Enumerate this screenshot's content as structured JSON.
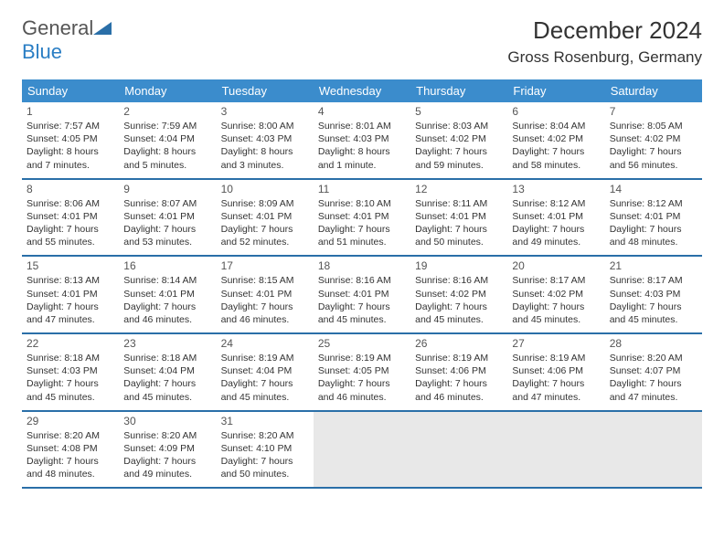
{
  "logo": {
    "text_main": "General",
    "text_blue": "Blue",
    "triangle_color": "#2a6fa8"
  },
  "title": "December 2024",
  "location": "Gross Rosenburg, Germany",
  "day_headers": [
    "Sunday",
    "Monday",
    "Tuesday",
    "Wednesday",
    "Thursday",
    "Friday",
    "Saturday"
  ],
  "colors": {
    "header_bg": "#3b8ccc",
    "header_text": "#ffffff",
    "row_border": "#2a6fa8",
    "inactive_bg": "#e8e8e8",
    "text": "#333333"
  },
  "weeks": [
    [
      {
        "num": "1",
        "sunrise": "Sunrise: 7:57 AM",
        "sunset": "Sunset: 4:05 PM",
        "daylight": "Daylight: 8 hours and 7 minutes."
      },
      {
        "num": "2",
        "sunrise": "Sunrise: 7:59 AM",
        "sunset": "Sunset: 4:04 PM",
        "daylight": "Daylight: 8 hours and 5 minutes."
      },
      {
        "num": "3",
        "sunrise": "Sunrise: 8:00 AM",
        "sunset": "Sunset: 4:03 PM",
        "daylight": "Daylight: 8 hours and 3 minutes."
      },
      {
        "num": "4",
        "sunrise": "Sunrise: 8:01 AM",
        "sunset": "Sunset: 4:03 PM",
        "daylight": "Daylight: 8 hours and 1 minute."
      },
      {
        "num": "5",
        "sunrise": "Sunrise: 8:03 AM",
        "sunset": "Sunset: 4:02 PM",
        "daylight": "Daylight: 7 hours and 59 minutes."
      },
      {
        "num": "6",
        "sunrise": "Sunrise: 8:04 AM",
        "sunset": "Sunset: 4:02 PM",
        "daylight": "Daylight: 7 hours and 58 minutes."
      },
      {
        "num": "7",
        "sunrise": "Sunrise: 8:05 AM",
        "sunset": "Sunset: 4:02 PM",
        "daylight": "Daylight: 7 hours and 56 minutes."
      }
    ],
    [
      {
        "num": "8",
        "sunrise": "Sunrise: 8:06 AM",
        "sunset": "Sunset: 4:01 PM",
        "daylight": "Daylight: 7 hours and 55 minutes."
      },
      {
        "num": "9",
        "sunrise": "Sunrise: 8:07 AM",
        "sunset": "Sunset: 4:01 PM",
        "daylight": "Daylight: 7 hours and 53 minutes."
      },
      {
        "num": "10",
        "sunrise": "Sunrise: 8:09 AM",
        "sunset": "Sunset: 4:01 PM",
        "daylight": "Daylight: 7 hours and 52 minutes."
      },
      {
        "num": "11",
        "sunrise": "Sunrise: 8:10 AM",
        "sunset": "Sunset: 4:01 PM",
        "daylight": "Daylight: 7 hours and 51 minutes."
      },
      {
        "num": "12",
        "sunrise": "Sunrise: 8:11 AM",
        "sunset": "Sunset: 4:01 PM",
        "daylight": "Daylight: 7 hours and 50 minutes."
      },
      {
        "num": "13",
        "sunrise": "Sunrise: 8:12 AM",
        "sunset": "Sunset: 4:01 PM",
        "daylight": "Daylight: 7 hours and 49 minutes."
      },
      {
        "num": "14",
        "sunrise": "Sunrise: 8:12 AM",
        "sunset": "Sunset: 4:01 PM",
        "daylight": "Daylight: 7 hours and 48 minutes."
      }
    ],
    [
      {
        "num": "15",
        "sunrise": "Sunrise: 8:13 AM",
        "sunset": "Sunset: 4:01 PM",
        "daylight": "Daylight: 7 hours and 47 minutes."
      },
      {
        "num": "16",
        "sunrise": "Sunrise: 8:14 AM",
        "sunset": "Sunset: 4:01 PM",
        "daylight": "Daylight: 7 hours and 46 minutes."
      },
      {
        "num": "17",
        "sunrise": "Sunrise: 8:15 AM",
        "sunset": "Sunset: 4:01 PM",
        "daylight": "Daylight: 7 hours and 46 minutes."
      },
      {
        "num": "18",
        "sunrise": "Sunrise: 8:16 AM",
        "sunset": "Sunset: 4:01 PM",
        "daylight": "Daylight: 7 hours and 45 minutes."
      },
      {
        "num": "19",
        "sunrise": "Sunrise: 8:16 AM",
        "sunset": "Sunset: 4:02 PM",
        "daylight": "Daylight: 7 hours and 45 minutes."
      },
      {
        "num": "20",
        "sunrise": "Sunrise: 8:17 AM",
        "sunset": "Sunset: 4:02 PM",
        "daylight": "Daylight: 7 hours and 45 minutes."
      },
      {
        "num": "21",
        "sunrise": "Sunrise: 8:17 AM",
        "sunset": "Sunset: 4:03 PM",
        "daylight": "Daylight: 7 hours and 45 minutes."
      }
    ],
    [
      {
        "num": "22",
        "sunrise": "Sunrise: 8:18 AM",
        "sunset": "Sunset: 4:03 PM",
        "daylight": "Daylight: 7 hours and 45 minutes."
      },
      {
        "num": "23",
        "sunrise": "Sunrise: 8:18 AM",
        "sunset": "Sunset: 4:04 PM",
        "daylight": "Daylight: 7 hours and 45 minutes."
      },
      {
        "num": "24",
        "sunrise": "Sunrise: 8:19 AM",
        "sunset": "Sunset: 4:04 PM",
        "daylight": "Daylight: 7 hours and 45 minutes."
      },
      {
        "num": "25",
        "sunrise": "Sunrise: 8:19 AM",
        "sunset": "Sunset: 4:05 PM",
        "daylight": "Daylight: 7 hours and 46 minutes."
      },
      {
        "num": "26",
        "sunrise": "Sunrise: 8:19 AM",
        "sunset": "Sunset: 4:06 PM",
        "daylight": "Daylight: 7 hours and 46 minutes."
      },
      {
        "num": "27",
        "sunrise": "Sunrise: 8:19 AM",
        "sunset": "Sunset: 4:06 PM",
        "daylight": "Daylight: 7 hours and 47 minutes."
      },
      {
        "num": "28",
        "sunrise": "Sunrise: 8:20 AM",
        "sunset": "Sunset: 4:07 PM",
        "daylight": "Daylight: 7 hours and 47 minutes."
      }
    ],
    [
      {
        "num": "29",
        "sunrise": "Sunrise: 8:20 AM",
        "sunset": "Sunset: 4:08 PM",
        "daylight": "Daylight: 7 hours and 48 minutes."
      },
      {
        "num": "30",
        "sunrise": "Sunrise: 8:20 AM",
        "sunset": "Sunset: 4:09 PM",
        "daylight": "Daylight: 7 hours and 49 minutes."
      },
      {
        "num": "31",
        "sunrise": "Sunrise: 8:20 AM",
        "sunset": "Sunset: 4:10 PM",
        "daylight": "Daylight: 7 hours and 50 minutes."
      },
      {
        "num": "",
        "inactive": true
      },
      {
        "num": "",
        "inactive": true
      },
      {
        "num": "",
        "inactive": true
      },
      {
        "num": "",
        "inactive": true
      }
    ]
  ]
}
